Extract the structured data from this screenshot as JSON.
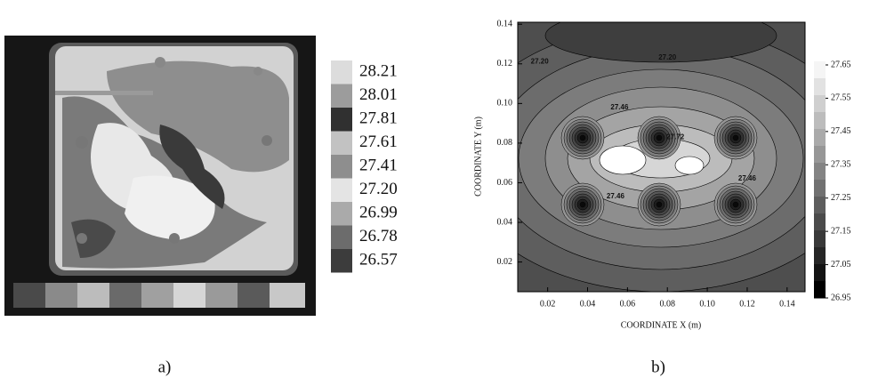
{
  "chart_data": [
    {
      "type": "image-heatmap",
      "caption": "a)",
      "colorbar_ticks": [
        28.21,
        28.01,
        27.81,
        27.61,
        27.41,
        {
          "value": 27.2,
          "label": "27.20"
        },
        26.99,
        26.78,
        26.57
      ],
      "colorbar_colors": [
        "#dcdcdc",
        "#9c9c9c",
        "#303030",
        "#c2c2c2",
        "#8e8e8e",
        "#e4e4e4",
        "#aaaaaa",
        "#6c6c6c",
        "#3c3c3c"
      ]
    },
    {
      "type": "contour",
      "caption": "b)",
      "xlabel": "COORDINATE X (m)",
      "ylabel": "COORDINATE Y (m)",
      "xlim": [
        0.005,
        0.149
      ],
      "ylim": [
        0.005,
        0.141
      ],
      "xticks": [
        0.02,
        0.04,
        0.06,
        0.08,
        {
          "value": 0.1,
          "label": "0.10"
        },
        0.12,
        0.14
      ],
      "yticks": [
        0.02,
        0.04,
        0.06,
        0.08,
        {
          "value": 0.1,
          "label": "0.10"
        },
        0.12,
        0.14
      ],
      "clim": [
        26.95,
        27.65
      ],
      "colorbar_ticks": [
        27.65,
        27.55,
        27.45,
        27.35,
        27.25,
        27.15,
        27.05,
        26.95
      ],
      "contour_labels": [
        {
          "value": 27.2,
          "label": "27.20",
          "x": 0.016,
          "y": 0.121
        },
        {
          "value": 27.2,
          "label": "27.20",
          "x": 0.08,
          "y": 0.123
        },
        {
          "value": 27.46,
          "label": "27.46",
          "x": 0.056,
          "y": 0.098
        },
        {
          "value": 27.72,
          "label": "27.72",
          "x": 0.084,
          "y": 0.083
        },
        {
          "value": 27.46,
          "label": "27.46",
          "x": 0.054,
          "y": 0.053
        },
        {
          "value": 27.46,
          "label": "27.46",
          "x": 0.12,
          "y": 0.062
        }
      ]
    }
  ]
}
